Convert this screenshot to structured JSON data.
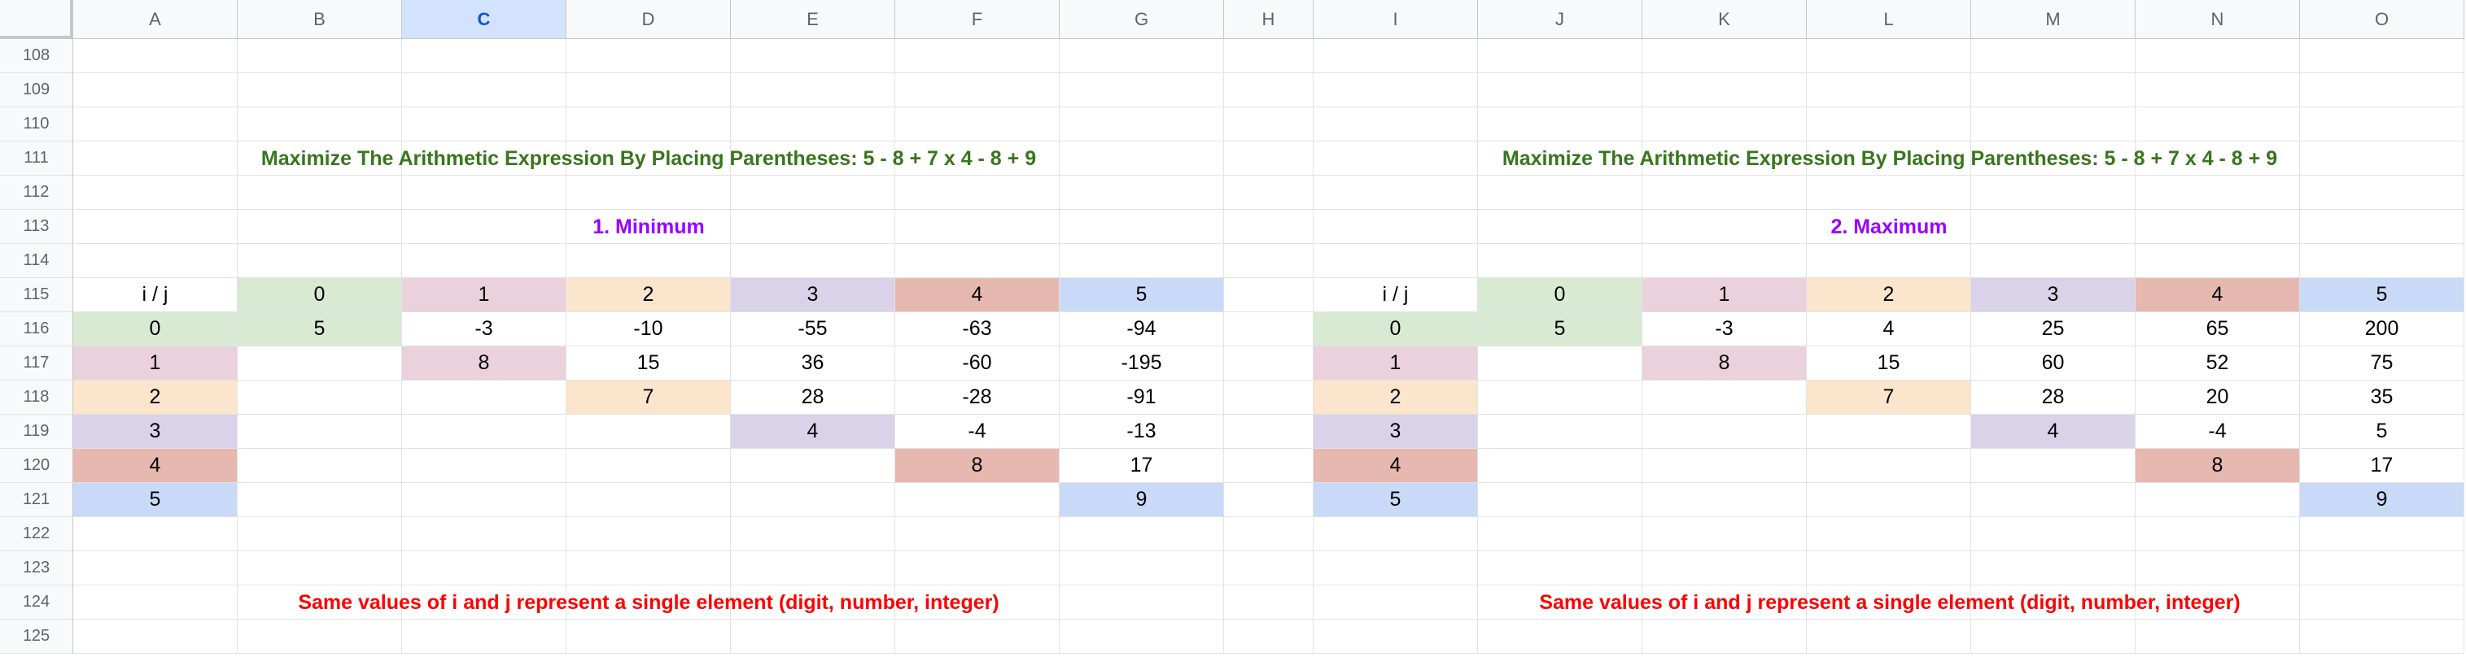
{
  "columns": [
    "A",
    "B",
    "C",
    "D",
    "E",
    "F",
    "G",
    "H",
    "I",
    "J",
    "K",
    "L",
    "M",
    "N",
    "O"
  ],
  "selected_column": "C",
  "rows": [
    "108",
    "109",
    "110",
    "111",
    "112",
    "113",
    "114",
    "115",
    "116",
    "117",
    "118",
    "119",
    "120",
    "121",
    "122",
    "123",
    "124",
    "125"
  ],
  "title_left": "Maximize The Arithmetic Expression By Placing Parentheses: 5 - 8 + 7 x 4 - 8 + 9",
  "title_right": "Maximize The Arithmetic Expression By Placing Parentheses: 5 - 8 + 7 x 4 - 8 + 9",
  "subtitle_left": "1. Minimum",
  "subtitle_right": "2. Maximum",
  "note_left": "Same values of i and j represent a single element (digit, number, integer)",
  "note_right": "Same values of i and j represent a single element (digit, number, integer)",
  "corner_label": "i / j",
  "indices": [
    "0",
    "1",
    "2",
    "3",
    "4",
    "5"
  ],
  "index_colors": [
    "#d9ead3",
    "#ead1dc",
    "#fce5cd",
    "#d9d2e9",
    "#e6b8af",
    "#c9daf8"
  ],
  "min_table": [
    [
      "5",
      "-3",
      "-10",
      "-55",
      "-63",
      "-94"
    ],
    [
      "",
      "8",
      "15",
      "36",
      "-60",
      "-195"
    ],
    [
      "",
      "",
      "7",
      "28",
      "-28",
      "-91"
    ],
    [
      "",
      "",
      "",
      "4",
      "-4",
      "-13"
    ],
    [
      "",
      "",
      "",
      "",
      "8",
      "17"
    ],
    [
      "",
      "",
      "",
      "",
      "",
      "9"
    ]
  ],
  "max_table": [
    [
      "5",
      "-3",
      "4",
      "25",
      "65",
      "200"
    ],
    [
      "",
      "8",
      "15",
      "60",
      "52",
      "75"
    ],
    [
      "",
      "",
      "7",
      "28",
      "20",
      "35"
    ],
    [
      "",
      "",
      "",
      "4",
      "-4",
      "5"
    ],
    [
      "",
      "",
      "",
      "",
      "8",
      "17"
    ],
    [
      "",
      "",
      "",
      "",
      "",
      "9"
    ]
  ]
}
